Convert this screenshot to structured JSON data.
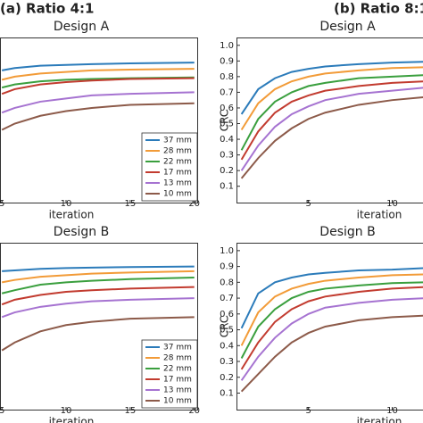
{
  "column_labels": [
    "(a) Ratio 4:1",
    "(b) Ratio 8:1"
  ],
  "chart_data": [
    {
      "type": "line",
      "title": "Design A",
      "xlabel": "iteration",
      "legend": "lower right",
      "x": [
        5,
        6,
        8,
        10,
        12,
        15,
        20
      ],
      "xlim": [
        4.85,
        20.3
      ],
      "xticks": [
        5,
        10,
        15,
        20
      ],
      "ylim": [
        -0.01,
        1.05
      ],
      "series": [
        {
          "name": "37 mm",
          "color": "#2b7bba",
          "values": [
            0.84,
            0.855,
            0.87,
            0.875,
            0.88,
            0.885,
            0.89
          ]
        },
        {
          "name": "28 mm",
          "color": "#f29b38",
          "values": [
            0.78,
            0.8,
            0.82,
            0.83,
            0.84,
            0.845,
            0.85
          ]
        },
        {
          "name": "22 mm",
          "color": "#3a9f3e",
          "values": [
            0.73,
            0.75,
            0.77,
            0.78,
            0.785,
            0.79,
            0.795
          ]
        },
        {
          "name": "17 mm",
          "color": "#c23b2f",
          "values": [
            0.69,
            0.72,
            0.75,
            0.765,
            0.775,
            0.785,
            0.79
          ]
        },
        {
          "name": "13 mm",
          "color": "#a673d1",
          "values": [
            0.57,
            0.6,
            0.64,
            0.66,
            0.68,
            0.69,
            0.7
          ]
        },
        {
          "name": "10 mm",
          "color": "#8c5a49",
          "values": [
            0.46,
            0.5,
            0.55,
            0.58,
            0.6,
            0.62,
            0.63
          ]
        }
      ]
    },
    {
      "type": "line",
      "title": "Design A",
      "xlabel": "iteration",
      "ylabel": "CRC",
      "x": [
        1,
        2,
        3,
        4,
        5,
        6,
        8,
        10,
        12
      ],
      "xlim": [
        0.7,
        12
      ],
      "xticks": [
        5,
        10
      ],
      "ylim": [
        -0.01,
        1.05
      ],
      "yticks": [
        0.1,
        0.2,
        0.3,
        0.4,
        0.5,
        0.6,
        0.7,
        0.8,
        0.9,
        {
          "value": 1,
          "label": "1.0"
        }
      ],
      "series": [
        {
          "color": "#2b7bba",
          "values": [
            0.56,
            0.72,
            0.79,
            0.83,
            0.85,
            0.865,
            0.88,
            0.89,
            0.895
          ]
        },
        {
          "color": "#f29b38",
          "values": [
            0.46,
            0.63,
            0.72,
            0.77,
            0.8,
            0.82,
            0.84,
            0.855,
            0.86
          ]
        },
        {
          "color": "#3a9f3e",
          "values": [
            0.33,
            0.53,
            0.64,
            0.7,
            0.74,
            0.76,
            0.79,
            0.8,
            0.81
          ]
        },
        {
          "color": "#c23b2f",
          "values": [
            0.27,
            0.45,
            0.57,
            0.64,
            0.68,
            0.71,
            0.74,
            0.76,
            0.77
          ]
        },
        {
          "color": "#a673d1",
          "values": [
            0.2,
            0.36,
            0.48,
            0.56,
            0.61,
            0.65,
            0.69,
            0.71,
            0.73
          ]
        },
        {
          "color": "#8c5a49",
          "values": [
            0.15,
            0.28,
            0.39,
            0.47,
            0.53,
            0.57,
            0.62,
            0.65,
            0.67
          ]
        }
      ]
    },
    {
      "type": "line",
      "title": "Design B",
      "xlabel": "iteration",
      "legend": "lower right",
      "x": [
        5,
        6,
        8,
        10,
        12,
        15,
        20
      ],
      "xlim": [
        4.85,
        20.3
      ],
      "xticks": [
        5,
        10,
        15,
        20
      ],
      "ylim": [
        -0.01,
        1.05
      ],
      "series": [
        {
          "name": "37 mm",
          "color": "#2b7bba",
          "values": [
            0.87,
            0.875,
            0.885,
            0.89,
            0.893,
            0.896,
            0.9
          ]
        },
        {
          "name": "28 mm",
          "color": "#f29b38",
          "values": [
            0.8,
            0.815,
            0.835,
            0.845,
            0.855,
            0.862,
            0.87
          ]
        },
        {
          "name": "22 mm",
          "color": "#3a9f3e",
          "values": [
            0.73,
            0.75,
            0.785,
            0.8,
            0.81,
            0.82,
            0.83
          ]
        },
        {
          "name": "17 mm",
          "color": "#c23b2f",
          "values": [
            0.66,
            0.69,
            0.72,
            0.74,
            0.75,
            0.76,
            0.77
          ]
        },
        {
          "name": "13 mm",
          "color": "#a673d1",
          "values": [
            0.58,
            0.61,
            0.645,
            0.665,
            0.68,
            0.69,
            0.7
          ]
        },
        {
          "name": "10 mm",
          "color": "#8c5a49",
          "values": [
            0.37,
            0.42,
            0.49,
            0.53,
            0.55,
            0.57,
            0.58
          ]
        }
      ]
    },
    {
      "type": "line",
      "title": "Design B",
      "xlabel": "iteration",
      "ylabel": "CRC",
      "x": [
        1,
        2,
        3,
        4,
        5,
        6,
        8,
        10,
        12
      ],
      "xlim": [
        0.7,
        12
      ],
      "xticks": [
        5,
        10
      ],
      "ylim": [
        -0.01,
        1.05
      ],
      "yticks": [
        0.1,
        0.2,
        0.3,
        0.4,
        0.5,
        0.6,
        0.7,
        0.8,
        0.9,
        {
          "value": 1,
          "label": "1.0"
        }
      ],
      "series": [
        {
          "color": "#2b7bba",
          "values": [
            0.51,
            0.73,
            0.8,
            0.83,
            0.85,
            0.86,
            0.875,
            0.88,
            0.89
          ]
        },
        {
          "color": "#f29b38",
          "values": [
            0.4,
            0.61,
            0.71,
            0.76,
            0.79,
            0.81,
            0.83,
            0.845,
            0.85
          ]
        },
        {
          "color": "#3a9f3e",
          "values": [
            0.32,
            0.52,
            0.63,
            0.7,
            0.74,
            0.76,
            0.78,
            0.795,
            0.8
          ]
        },
        {
          "color": "#c23b2f",
          "values": [
            0.25,
            0.42,
            0.55,
            0.63,
            0.68,
            0.71,
            0.74,
            0.76,
            0.77
          ]
        },
        {
          "color": "#a673d1",
          "values": [
            0.18,
            0.33,
            0.45,
            0.54,
            0.6,
            0.64,
            0.67,
            0.69,
            0.7
          ]
        },
        {
          "color": "#8c5a49",
          "values": [
            0.11,
            0.22,
            0.33,
            0.42,
            0.48,
            0.52,
            0.56,
            0.58,
            0.59
          ]
        }
      ]
    }
  ]
}
